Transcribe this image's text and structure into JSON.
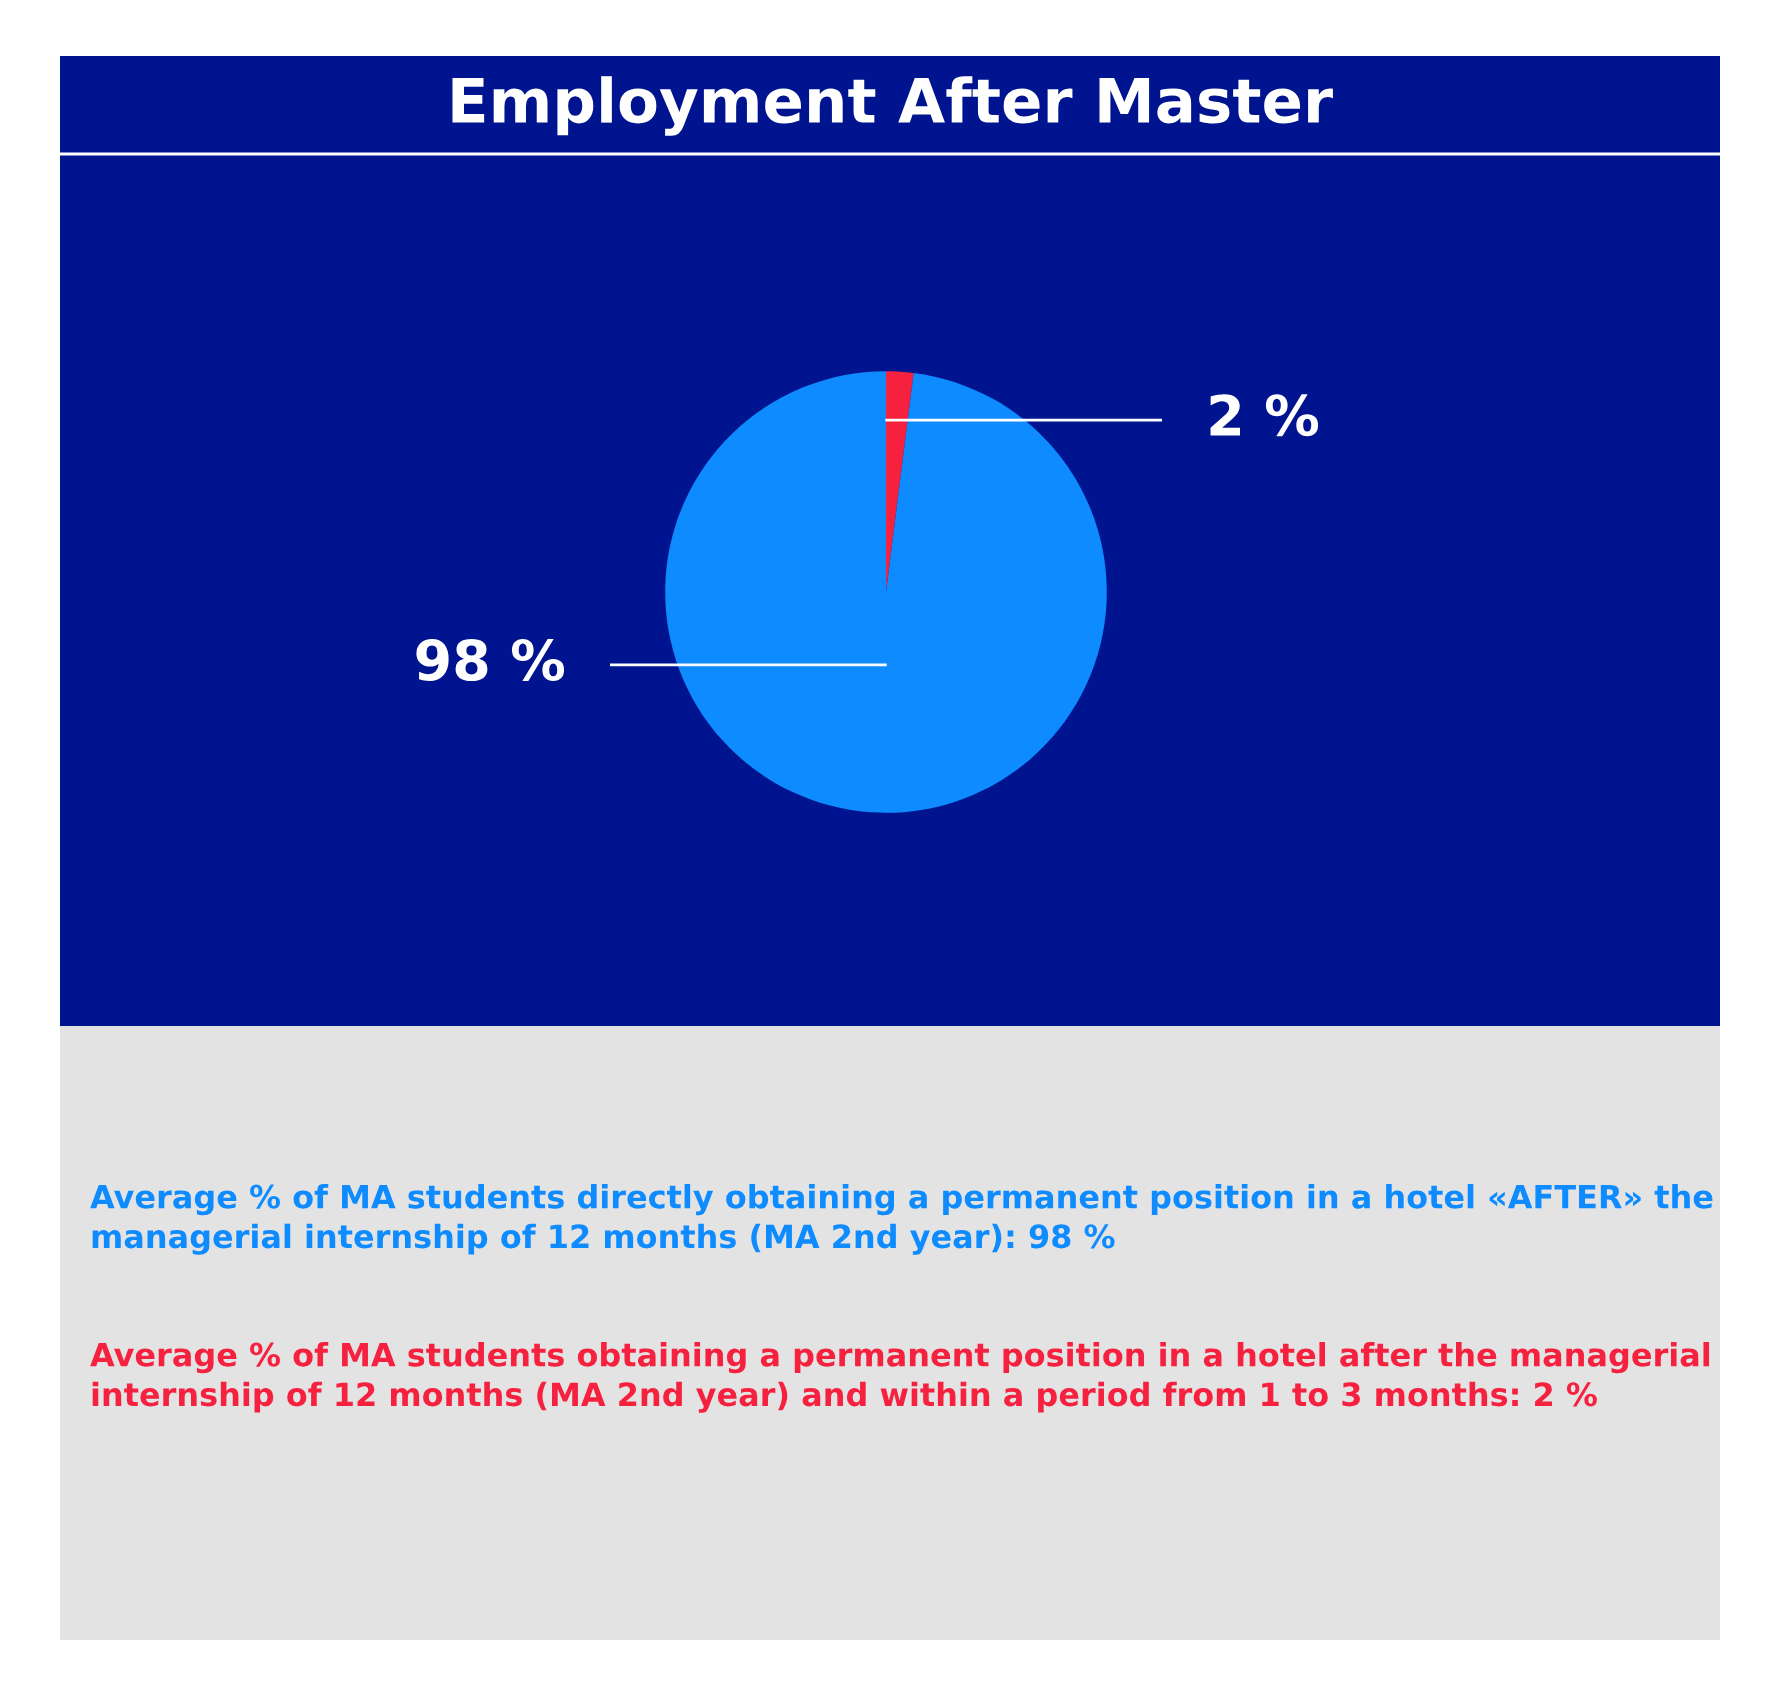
{
  "chart_data": {
    "type": "pie",
    "title": "Employment After Master",
    "categories": [
      null,
      null
    ],
    "values": [
      2,
      98
    ],
    "colors": [
      "#f5213f",
      "#0d8bff"
    ],
    "value_labels": [
      "2 %",
      "98 %"
    ],
    "annotations": [
      "Average % of MA students directly obtaining a permanent position in a hotel «AFTER» the managerial internship of 12 months (MA 2nd year): 98 %",
      "Average % of MA students obtaining a permanent position in a hotel after the managerial internship of 12 months (MA 2nd year) and within a period from 1 to 3 months: 2 %"
    ]
  }
}
